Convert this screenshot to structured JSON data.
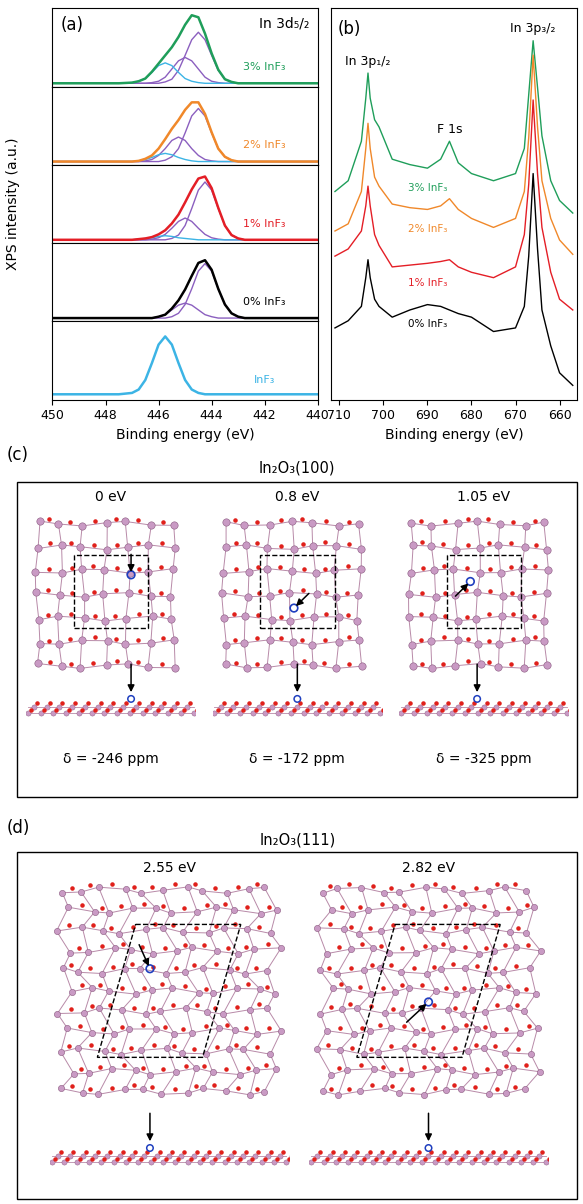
{
  "chart_data": [
    {
      "type": "line",
      "panel_label": "(a)",
      "annotation": "In 3d₅/₂",
      "xlabel": "Binding energy (eV)",
      "ylabel": "XPS intensity (a.u.)",
      "xlim": [
        450,
        440
      ],
      "xticks": [
        450,
        448,
        446,
        444,
        442,
        440
      ],
      "ylim": [
        -0.05,
        1.1
      ],
      "tick_labels": "x",
      "x": [
        450,
        448,
        447.5,
        447,
        446.75,
        446.5,
        446.25,
        446,
        445.75,
        445.5,
        445.25,
        445,
        444.75,
        444.5,
        444.25,
        444,
        443.75,
        443.5,
        443.25,
        443,
        442.75,
        442.5,
        442,
        440
      ],
      "subpanels": [
        {
          "label": "3% InF₃",
          "color": "#1f9e5a",
          "envelope": [
            0,
            0,
            0,
            0.01,
            0.03,
            0.07,
            0.17,
            0.29,
            0.41,
            0.53,
            0.68,
            0.86,
            1.0,
            0.97,
            0.73,
            0.44,
            0.2,
            0.06,
            0.02,
            0,
            0,
            0,
            0,
            0
          ],
          "components": [
            {
              "color": "#8b5fbf",
              "values": [
                0,
                0,
                0,
                0,
                0,
                0,
                0,
                0,
                0.02,
                0.06,
                0.19,
                0.41,
                0.64,
                0.75,
                0.64,
                0.41,
                0.19,
                0.06,
                0.02,
                0,
                0,
                0,
                0,
                0
              ]
            },
            {
              "color": "#8b5fbf",
              "values": [
                0,
                0,
                0,
                0,
                0,
                0,
                0.01,
                0.03,
                0.09,
                0.21,
                0.33,
                0.38,
                0.33,
                0.21,
                0.09,
                0.03,
                0.01,
                0,
                0,
                0,
                0,
                0,
                0,
                0
              ]
            },
            {
              "color": "#3cb4e5",
              "values": [
                0,
                0,
                0,
                0.01,
                0.03,
                0.07,
                0.16,
                0.26,
                0.3,
                0.26,
                0.16,
                0.07,
                0.03,
                0.01,
                0,
                0,
                0,
                0,
                0,
                0,
                0,
                0,
                0,
                0
              ]
            }
          ]
        },
        {
          "label": "2% InF₃",
          "color": "#f0882a",
          "envelope": [
            0,
            0,
            0,
            0,
            0.01,
            0.04,
            0.09,
            0.19,
            0.33,
            0.48,
            0.61,
            0.76,
            0.87,
            0.87,
            0.7,
            0.43,
            0.19,
            0.07,
            0.02,
            0,
            0,
            0,
            0,
            0
          ],
          "components": [
            {
              "color": "#8b5fbf",
              "values": [
                0,
                0,
                0,
                0,
                0,
                0,
                0,
                0,
                0.02,
                0.07,
                0.19,
                0.42,
                0.67,
                0.78,
                0.67,
                0.42,
                0.19,
                0.07,
                0.02,
                0,
                0,
                0,
                0,
                0
              ]
            },
            {
              "color": "#8b5fbf",
              "values": [
                0,
                0,
                0,
                0,
                0,
                0.01,
                0.03,
                0.09,
                0.19,
                0.31,
                0.36,
                0.31,
                0.19,
                0.09,
                0.03,
                0.01,
                0,
                0,
                0,
                0,
                0,
                0,
                0,
                0
              ]
            },
            {
              "color": "#3cb4e5",
              "values": [
                0,
                0,
                0,
                0,
                0.01,
                0.03,
                0.06,
                0.1,
                0.12,
                0.1,
                0.06,
                0.03,
                0.01,
                0,
                0,
                0,
                0,
                0,
                0,
                0,
                0,
                0,
                0,
                0
              ]
            }
          ]
        },
        {
          "label": "1% InF₃",
          "color": "#e41e26",
          "envelope": [
            0,
            0,
            0,
            0,
            0.01,
            0.02,
            0.04,
            0.08,
            0.14,
            0.24,
            0.37,
            0.55,
            0.74,
            0.9,
            0.93,
            0.76,
            0.47,
            0.21,
            0.07,
            0.02,
            0,
            0,
            0,
            0
          ],
          "components": [
            {
              "color": "#8b5fbf",
              "values": [
                0,
                0,
                0,
                0,
                0,
                0,
                0,
                0,
                0,
                0.02,
                0.07,
                0.21,
                0.46,
                0.73,
                0.85,
                0.73,
                0.46,
                0.21,
                0.07,
                0.02,
                0,
                0,
                0,
                0
              ]
            },
            {
              "color": "#8b5fbf",
              "values": [
                0,
                0,
                0,
                0,
                0,
                0,
                0.01,
                0.03,
                0.08,
                0.17,
                0.27,
                0.32,
                0.27,
                0.17,
                0.08,
                0.03,
                0.01,
                0,
                0,
                0,
                0,
                0,
                0,
                0
              ]
            },
            {
              "color": "#3cb4e5",
              "values": [
                0,
                0,
                0,
                0,
                0.01,
                0.02,
                0.03,
                0.05,
                0.06,
                0.05,
                0.03,
                0.02,
                0.01,
                0,
                0,
                0,
                0,
                0,
                0,
                0,
                0,
                0,
                0,
                0
              ]
            }
          ]
        },
        {
          "label": "0% InF₃",
          "color": "#000000",
          "envelope": [
            0,
            0,
            0,
            0,
            0,
            0,
            0,
            0.02,
            0.05,
            0.14,
            0.26,
            0.42,
            0.62,
            0.81,
            0.85,
            0.71,
            0.43,
            0.2,
            0.07,
            0.02,
            0,
            0,
            0,
            0
          ],
          "components": [
            {
              "color": "#8b5fbf",
              "values": [
                0,
                0,
                0,
                0,
                0,
                0,
                0,
                0,
                0,
                0.02,
                0.07,
                0.2,
                0.43,
                0.69,
                0.8,
                0.69,
                0.43,
                0.2,
                0.07,
                0.02,
                0,
                0,
                0,
                0
              ]
            },
            {
              "color": "#8b5fbf",
              "values": [
                0,
                0,
                0,
                0,
                0,
                0,
                0,
                0.02,
                0.05,
                0.12,
                0.19,
                0.22,
                0.19,
                0.12,
                0.05,
                0.02,
                0,
                0,
                0,
                0,
                0,
                0,
                0,
                0
              ]
            }
          ]
        },
        {
          "label": "InF₃",
          "color": "#3cb4e5",
          "envelope": [
            0.03,
            0.03,
            0.03,
            0.05,
            0.1,
            0.24,
            0.49,
            0.76,
            0.88,
            0.76,
            0.49,
            0.24,
            0.1,
            0.05,
            0.03,
            0.03,
            0.03,
            0.03,
            0.03,
            0.03,
            0.03,
            0.03,
            0.03,
            0.03
          ],
          "components": []
        }
      ]
    },
    {
      "type": "line",
      "panel_label": "(b)",
      "xlabel": "Binding energy (eV)",
      "xlim": [
        712,
        656
      ],
      "xticks": [
        710,
        700,
        690,
        680,
        670,
        660
      ],
      "ylim": [
        0,
        10.9
      ],
      "tick_labels": "x",
      "x": [
        711,
        708,
        705,
        704,
        703.5,
        703,
        702,
        701,
        698,
        694,
        690,
        687,
        685,
        683,
        680,
        675,
        670,
        668,
        667,
        666,
        665,
        664,
        662,
        660,
        657
      ],
      "series": [
        {
          "name": "3% InF₃",
          "color": "#1f9e5a",
          "values": [
            5.8,
            6.1,
            7.2,
            8.4,
            9.1,
            8.4,
            7.8,
            7.6,
            6.7,
            6.55,
            6.45,
            6.7,
            7.2,
            6.6,
            6.3,
            6.1,
            6.3,
            7.0,
            8.5,
            10.0,
            8.7,
            7.35,
            6.1,
            5.55,
            5.2
          ]
        },
        {
          "name": "2% InF₃",
          "color": "#f0882a",
          "values": [
            4.7,
            4.9,
            5.8,
            7.0,
            7.7,
            7.0,
            6.2,
            5.95,
            5.45,
            5.35,
            5.3,
            5.4,
            5.6,
            5.3,
            5.05,
            4.8,
            5.05,
            5.8,
            7.3,
            9.6,
            7.6,
            6.1,
            5.05,
            4.45,
            4.05
          ]
        },
        {
          "name": "1% InF₃",
          "color": "#e41e26",
          "values": [
            4.0,
            4.2,
            4.7,
            5.4,
            5.95,
            5.4,
            4.6,
            4.3,
            3.7,
            3.75,
            3.8,
            3.85,
            3.9,
            3.7,
            3.55,
            3.4,
            3.7,
            4.6,
            6.0,
            8.35,
            6.3,
            4.8,
            3.55,
            2.8,
            2.5
          ]
        },
        {
          "name": "0% InF₃",
          "color": "#000000",
          "values": [
            2.0,
            2.2,
            2.6,
            3.4,
            3.9,
            3.4,
            2.8,
            2.6,
            2.3,
            2.5,
            2.65,
            2.6,
            2.5,
            2.4,
            2.3,
            1.9,
            2.0,
            2.6,
            4.0,
            6.3,
            4.2,
            2.5,
            1.5,
            0.75,
            0.4
          ]
        }
      ],
      "annotations": [
        {
          "text": "In 3p₁/₂",
          "x": 703.5
        },
        {
          "text": "In 3p₃/₂",
          "x": 666
        },
        {
          "text": "F 1s",
          "x": 685
        }
      ]
    }
  ],
  "diagrams": [
    {
      "panel_label": "(c)",
      "title": "In₂O₃(100)",
      "structures": [
        {
          "energy": "0 eV",
          "shift": "δ = -246 ppm"
        },
        {
          "energy": "0.8 eV",
          "shift": "δ = -172 ppm"
        },
        {
          "energy": "1.05 eV",
          "shift": "δ = -325 ppm"
        }
      ]
    },
    {
      "panel_label": "(d)",
      "title": "In₂O₃(111)",
      "structures": [
        {
          "energy": "2.55 eV"
        },
        {
          "energy": "2.82 eV"
        }
      ]
    }
  ]
}
